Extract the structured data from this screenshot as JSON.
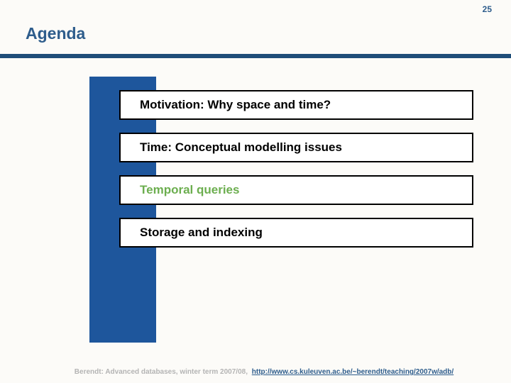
{
  "slide": {
    "page_number": "25",
    "title": "Agenda",
    "agenda_items": [
      {
        "label": "Motivation: Why space and time?",
        "text_color": "#000000"
      },
      {
        "label": "Time: Conceptual modelling issues",
        "text_color": "#000000"
      },
      {
        "label": "Temporal queries",
        "text_color": "#6cae4f"
      },
      {
        "label": "Storage and indexing",
        "text_color": "#000000"
      }
    ],
    "footer": {
      "credit": "Berendt: Advanced databases, winter term 2007/08,",
      "link_text": "http://www.cs.kuleuven.ac.be/~berendt/teaching/2007w/adb/"
    },
    "colors": {
      "slide_background": "#fcfbf8",
      "title_text": "#2e5d8c",
      "header_rule": "#1f4e79",
      "accent_bar": "#1e569c",
      "box_background": "#ffffff",
      "box_border": "#000000",
      "highlight_item_text": "#6cae4f",
      "footer_credit_text": "#b4b4b4",
      "footer_link_text": "#2e5d8c"
    }
  }
}
